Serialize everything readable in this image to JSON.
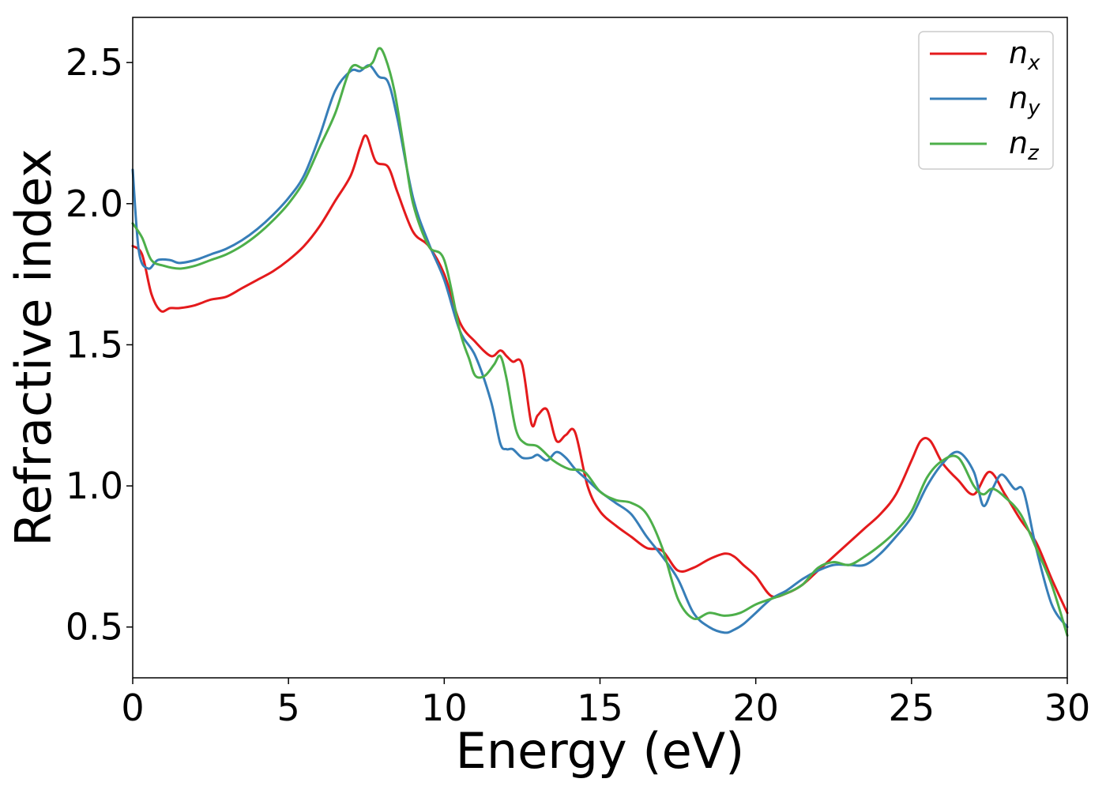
{
  "chart_data": {
    "type": "line",
    "title": "",
    "xlabel": "Energy (eV)",
    "ylabel": "Refractive index",
    "xlim": [
      0,
      30
    ],
    "ylim": [
      0.32,
      2.66
    ],
    "xticks": [
      0,
      5,
      10,
      15,
      20,
      25,
      30
    ],
    "yticks": [
      0.5,
      1.0,
      1.5,
      2.0,
      2.5
    ],
    "xtick_labels": [
      "0",
      "5",
      "10",
      "15",
      "20",
      "25",
      "30"
    ],
    "ytick_labels": [
      "0.5",
      "1.0",
      "1.5",
      "2.0",
      "2.5"
    ],
    "grid": false,
    "legend_position": "top-right",
    "series": [
      {
        "name": "n",
        "subscript": "x",
        "color": "#e41a1c",
        "x": [
          0,
          0.3,
          0.6,
          0.9,
          1.2,
          1.5,
          2,
          2.5,
          3,
          3.5,
          4,
          4.5,
          5,
          5.5,
          6,
          6.5,
          7,
          7.3,
          7.5,
          7.8,
          8.2,
          8.5,
          9,
          9.5,
          10,
          10.5,
          11,
          11.5,
          11.8,
          12,
          12.2,
          12.5,
          12.8,
          13,
          13.3,
          13.6,
          13.9,
          14.2,
          14.6,
          15,
          15.5,
          16,
          16.5,
          17,
          17.5,
          18,
          18.5,
          19,
          19.3,
          19.6,
          20,
          20.5,
          21,
          21.5,
          22,
          22.5,
          23,
          23.5,
          24,
          24.5,
          25,
          25.3,
          25.6,
          26,
          26.5,
          27,
          27.5,
          28,
          28.5,
          29,
          29.5,
          30
        ],
        "y": [
          1.85,
          1.82,
          1.68,
          1.62,
          1.63,
          1.63,
          1.64,
          1.66,
          1.67,
          1.7,
          1.73,
          1.76,
          1.8,
          1.85,
          1.92,
          2.01,
          2.1,
          2.2,
          2.24,
          2.15,
          2.13,
          2.04,
          1.9,
          1.85,
          1.75,
          1.58,
          1.51,
          1.46,
          1.48,
          1.46,
          1.44,
          1.43,
          1.22,
          1.25,
          1.27,
          1.16,
          1.18,
          1.19,
          1.0,
          0.91,
          0.86,
          0.82,
          0.78,
          0.77,
          0.7,
          0.71,
          0.74,
          0.76,
          0.75,
          0.72,
          0.68,
          0.61,
          0.62,
          0.65,
          0.7,
          0.75,
          0.8,
          0.85,
          0.9,
          0.97,
          1.09,
          1.16,
          1.16,
          1.08,
          1.02,
          0.97,
          1.05,
          0.97,
          0.88,
          0.8,
          0.67,
          0.55
        ]
      },
      {
        "name": "n",
        "subscript": "y",
        "color": "#377eb8",
        "x": [
          0,
          0.2,
          0.5,
          0.8,
          1.2,
          1.5,
          2,
          2.5,
          3,
          3.5,
          4,
          4.5,
          5,
          5.5,
          6,
          6.5,
          7,
          7.3,
          7.6,
          7.9,
          8.2,
          8.5,
          9,
          9.5,
          10,
          10.5,
          11,
          11.5,
          11.8,
          12,
          12.2,
          12.5,
          12.8,
          13,
          13.3,
          13.6,
          13.9,
          14.2,
          14.6,
          15,
          15.5,
          16,
          16.5,
          17,
          17.5,
          18,
          18.5,
          19,
          19.3,
          19.6,
          20,
          20.5,
          21,
          21.5,
          22,
          22.5,
          23,
          23.5,
          24,
          24.5,
          25,
          25.5,
          26,
          26.5,
          27,
          27.3,
          27.6,
          27.9,
          28.3,
          28.6,
          29,
          29.5,
          30
        ],
        "y": [
          2.12,
          1.83,
          1.77,
          1.8,
          1.8,
          1.79,
          1.8,
          1.82,
          1.84,
          1.87,
          1.91,
          1.96,
          2.02,
          2.1,
          2.24,
          2.4,
          2.47,
          2.47,
          2.49,
          2.45,
          2.43,
          2.3,
          2.02,
          1.86,
          1.73,
          1.55,
          1.46,
          1.3,
          1.15,
          1.13,
          1.13,
          1.1,
          1.1,
          1.11,
          1.09,
          1.12,
          1.1,
          1.06,
          1.02,
          0.98,
          0.94,
          0.9,
          0.82,
          0.75,
          0.67,
          0.55,
          0.5,
          0.48,
          0.49,
          0.51,
          0.55,
          0.6,
          0.63,
          0.67,
          0.7,
          0.72,
          0.72,
          0.72,
          0.76,
          0.82,
          0.89,
          1.0,
          1.08,
          1.12,
          1.05,
          0.93,
          0.99,
          1.04,
          0.99,
          0.98,
          0.78,
          0.58,
          0.5
        ]
      },
      {
        "name": "n",
        "subscript": "z",
        "color": "#4daf4a",
        "x": [
          0,
          0.3,
          0.6,
          1,
          1.5,
          2,
          2.5,
          3,
          3.5,
          4,
          4.5,
          5,
          5.5,
          6,
          6.5,
          7,
          7.4,
          7.7,
          7.9,
          8.1,
          8.4,
          8.7,
          9,
          9.5,
          10,
          10.5,
          10.8,
          11,
          11.3,
          11.6,
          11.8,
          12,
          12.3,
          12.6,
          13,
          13.5,
          14,
          14.5,
          15,
          15.5,
          16,
          16.5,
          17,
          17.5,
          18,
          18.5,
          19,
          19.5,
          20,
          20.5,
          21,
          21.5,
          22,
          22.5,
          23,
          23.5,
          24,
          24.5,
          25,
          25.5,
          26,
          26.5,
          27,
          27.3,
          27.6,
          28,
          28.5,
          29,
          29.5,
          30
        ],
        "y": [
          1.93,
          1.88,
          1.8,
          1.78,
          1.77,
          1.78,
          1.8,
          1.82,
          1.85,
          1.89,
          1.94,
          2.0,
          2.08,
          2.2,
          2.32,
          2.48,
          2.48,
          2.5,
          2.55,
          2.52,
          2.4,
          2.2,
          2.0,
          1.85,
          1.8,
          1.55,
          1.45,
          1.39,
          1.39,
          1.43,
          1.46,
          1.38,
          1.2,
          1.15,
          1.14,
          1.09,
          1.06,
          1.05,
          0.98,
          0.95,
          0.94,
          0.9,
          0.78,
          0.6,
          0.53,
          0.55,
          0.54,
          0.55,
          0.58,
          0.6,
          0.62,
          0.65,
          0.71,
          0.73,
          0.72,
          0.75,
          0.79,
          0.84,
          0.91,
          1.03,
          1.09,
          1.1,
          1.0,
          0.97,
          0.99,
          0.96,
          0.9,
          0.78,
          0.65,
          0.47
        ]
      }
    ]
  }
}
